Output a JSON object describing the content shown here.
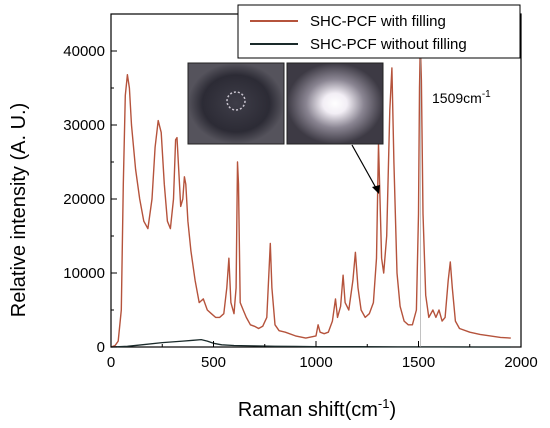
{
  "chart_data": {
    "type": "line",
    "xlabel": "Raman shift(cm",
    "xlabel_superscript": "-1",
    "xlabel_suffix": ")",
    "ylabel": "Relative intensity (A. U.)",
    "xlim": [
      0,
      2000
    ],
    "ylim": [
      0,
      45000
    ],
    "x_ticks": [
      0,
      500,
      1000,
      1500,
      2000
    ],
    "y_ticks": [
      0,
      10000,
      20000,
      30000,
      40000
    ],
    "grid": false,
    "legend_position": "top-right",
    "annotation": {
      "text": "1509cm",
      "superscript": "-1",
      "x": 1509
    },
    "inset": {
      "description_panels": [
        "end-face without filling",
        "end-face with filling"
      ]
    },
    "series": [
      {
        "name": "SHC-PCF with filling",
        "color": "#b5533c",
        "points": [
          [
            0,
            0
          ],
          [
            20,
            200
          ],
          [
            35,
            800
          ],
          [
            50,
            5000
          ],
          [
            60,
            22000
          ],
          [
            70,
            34000
          ],
          [
            80,
            36800
          ],
          [
            90,
            35000
          ],
          [
            100,
            30000
          ],
          [
            120,
            24000
          ],
          [
            140,
            20000
          ],
          [
            160,
            17000
          ],
          [
            180,
            16000
          ],
          [
            200,
            20000
          ],
          [
            215,
            27000
          ],
          [
            230,
            30600
          ],
          [
            245,
            29000
          ],
          [
            260,
            22000
          ],
          [
            275,
            17000
          ],
          [
            290,
            16000
          ],
          [
            305,
            20000
          ],
          [
            315,
            28000
          ],
          [
            322,
            28300
          ],
          [
            330,
            24000
          ],
          [
            340,
            19000
          ],
          [
            350,
            20000
          ],
          [
            358,
            23000
          ],
          [
            365,
            22000
          ],
          [
            375,
            17000
          ],
          [
            390,
            13000
          ],
          [
            410,
            9000
          ],
          [
            430,
            6000
          ],
          [
            450,
            6500
          ],
          [
            470,
            5000
          ],
          [
            490,
            4500
          ],
          [
            510,
            4000
          ],
          [
            530,
            4000
          ],
          [
            550,
            4500
          ],
          [
            565,
            8000
          ],
          [
            575,
            12000
          ],
          [
            585,
            6000
          ],
          [
            600,
            4500
          ],
          [
            610,
            8000
          ],
          [
            617,
            25000
          ],
          [
            622,
            22000
          ],
          [
            630,
            6000
          ],
          [
            645,
            5000
          ],
          [
            660,
            4000
          ],
          [
            680,
            3000
          ],
          [
            700,
            2800
          ],
          [
            720,
            2500
          ],
          [
            740,
            2800
          ],
          [
            760,
            4000
          ],
          [
            770,
            10000
          ],
          [
            777,
            14000
          ],
          [
            785,
            8000
          ],
          [
            800,
            3000
          ],
          [
            820,
            2200
          ],
          [
            850,
            2000
          ],
          [
            900,
            1500
          ],
          [
            950,
            1200
          ],
          [
            1000,
            1500
          ],
          [
            1010,
            3000
          ],
          [
            1020,
            2000
          ],
          [
            1040,
            1800
          ],
          [
            1060,
            2000
          ],
          [
            1080,
            3500
          ],
          [
            1095,
            6500
          ],
          [
            1105,
            4000
          ],
          [
            1120,
            5500
          ],
          [
            1132,
            9700
          ],
          [
            1142,
            6000
          ],
          [
            1160,
            5000
          ],
          [
            1180,
            9000
          ],
          [
            1192,
            12800
          ],
          [
            1205,
            8000
          ],
          [
            1220,
            5000
          ],
          [
            1240,
            4000
          ],
          [
            1260,
            4500
          ],
          [
            1280,
            6000
          ],
          [
            1295,
            12000
          ],
          [
            1305,
            27500
          ],
          [
            1312,
            20000
          ],
          [
            1320,
            12000
          ],
          [
            1330,
            10000
          ],
          [
            1345,
            15000
          ],
          [
            1360,
            32000
          ],
          [
            1370,
            37700
          ],
          [
            1380,
            25000
          ],
          [
            1395,
            10000
          ],
          [
            1410,
            5500
          ],
          [
            1430,
            3500
          ],
          [
            1450,
            3000
          ],
          [
            1470,
            3000
          ],
          [
            1490,
            5000
          ],
          [
            1500,
            18000
          ],
          [
            1505,
            35000
          ],
          [
            1509,
            41000
          ],
          [
            1514,
            36000
          ],
          [
            1522,
            18000
          ],
          [
            1535,
            7000
          ],
          [
            1550,
            4000
          ],
          [
            1570,
            5000
          ],
          [
            1585,
            4000
          ],
          [
            1600,
            5000
          ],
          [
            1615,
            3500
          ],
          [
            1630,
            4000
          ],
          [
            1645,
            9000
          ],
          [
            1655,
            11500
          ],
          [
            1665,
            8000
          ],
          [
            1680,
            3500
          ],
          [
            1700,
            2500
          ],
          [
            1750,
            2000
          ],
          [
            1800,
            1700
          ],
          [
            1850,
            1500
          ],
          [
            1900,
            1300
          ],
          [
            1950,
            1200
          ]
        ]
      },
      {
        "name": "SHC-PCF without filling",
        "color": "#1a2a2a",
        "points": [
          [
            0,
            0
          ],
          [
            40,
            50
          ],
          [
            80,
            100
          ],
          [
            150,
            300
          ],
          [
            250,
            600
          ],
          [
            350,
            800
          ],
          [
            400,
            900
          ],
          [
            440,
            1000
          ],
          [
            470,
            800
          ],
          [
            500,
            500
          ],
          [
            540,
            300
          ],
          [
            600,
            200
          ],
          [
            700,
            150
          ],
          [
            800,
            100
          ],
          [
            900,
            80
          ],
          [
            1000,
            60
          ],
          [
            1200,
            40
          ],
          [
            1400,
            20
          ],
          [
            1600,
            10
          ],
          [
            1800,
            5
          ],
          [
            1950,
            0
          ]
        ]
      }
    ]
  }
}
